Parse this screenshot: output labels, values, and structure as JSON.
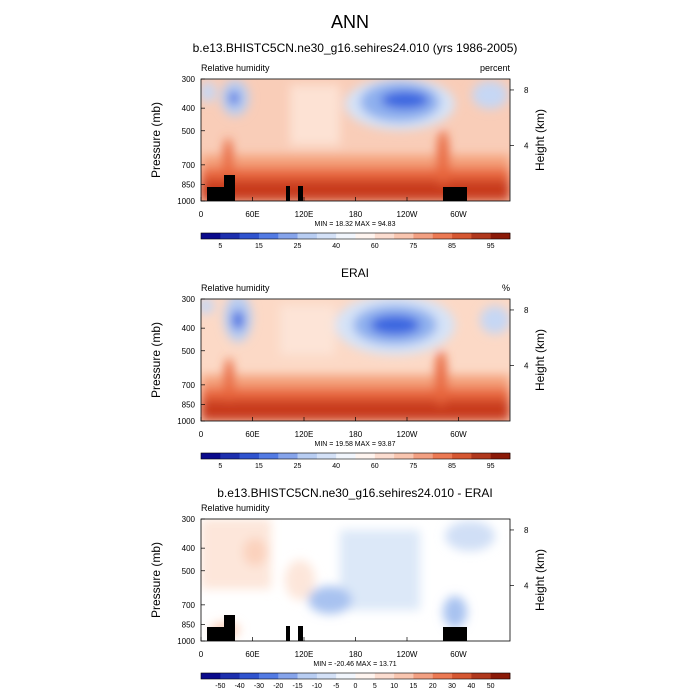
{
  "page_title": "ANN",
  "colors": {
    "blue_dark": "#0a0a8c",
    "blue": "#3a66e0",
    "blue_light": "#b8cdf2",
    "neutral": "#ffffff",
    "red_light": "#f9c6b0",
    "red": "#e8663c",
    "red_dark": "#8b1a08",
    "land": "#000000"
  },
  "chart_data": [
    {
      "type": "heatmap",
      "title": "b.e13.BHISTC5CN.ne30_g16.sehires24.010 (yrs 1986-2005)",
      "left_string": "Relative humidity",
      "right_string": "percent",
      "ylabel": "Pressure (mb)",
      "y2label": "Height (km)",
      "xticks": [
        "0",
        "60E",
        "120E",
        "180",
        "120W",
        "60W"
      ],
      "yticks": [
        "300",
        "400",
        "500",
        "700",
        "850",
        "1000"
      ],
      "y2ticks": [
        "8",
        "4"
      ],
      "ylim": [
        1000,
        300
      ],
      "xlim": [
        0,
        360
      ],
      "stats": "MIN = 18.32  MAX = 94.83",
      "min": 18.32,
      "max": 94.83,
      "colorbar_labels": [
        "5",
        "15",
        "25",
        "40",
        "60",
        "75",
        "85",
        "95"
      ],
      "colorbar_levels": [
        5,
        10,
        15,
        20,
        25,
        30,
        40,
        50,
        60,
        70,
        75,
        80,
        85,
        90,
        95
      ]
    },
    {
      "type": "heatmap",
      "title": "ERAI",
      "left_string": "Relative humidity",
      "right_string": "%",
      "ylabel": "Pressure (mb)",
      "y2label": "Height (km)",
      "xticks": [
        "0",
        "60E",
        "120E",
        "180",
        "120W",
        "60W"
      ],
      "yticks": [
        "300",
        "400",
        "500",
        "700",
        "850",
        "1000"
      ],
      "y2ticks": [
        "8",
        "4"
      ],
      "ylim": [
        1000,
        300
      ],
      "xlim": [
        0,
        360
      ],
      "stats": "MIN = 19.58  MAX = 93.87",
      "min": 19.58,
      "max": 93.87,
      "colorbar_labels": [
        "5",
        "15",
        "25",
        "40",
        "60",
        "75",
        "85",
        "95"
      ],
      "colorbar_levels": [
        5,
        10,
        15,
        20,
        25,
        30,
        40,
        50,
        60,
        70,
        75,
        80,
        85,
        90,
        95
      ]
    },
    {
      "type": "heatmap",
      "title": "b.e13.BHISTC5CN.ne30_g16.sehires24.010 - ERAI",
      "left_string": "Relative humidity",
      "right_string": "",
      "ylabel": "Pressure (mb)",
      "y2label": "Height (km)",
      "xticks": [
        "0",
        "60E",
        "120E",
        "180",
        "120W",
        "60W"
      ],
      "yticks": [
        "300",
        "400",
        "500",
        "700",
        "850",
        "1000"
      ],
      "y2ticks": [
        "8",
        "4"
      ],
      "ylim": [
        1000,
        300
      ],
      "xlim": [
        0,
        360
      ],
      "stats": "MIN = -20.46  MAX = 13.71",
      "min": -20.46,
      "max": 13.71,
      "colorbar_labels": [
        "-50",
        "-40",
        "-30",
        "-20",
        "-15",
        "-10",
        "-5",
        "0",
        "5",
        "10",
        "15",
        "20",
        "30",
        "40",
        "50"
      ],
      "colorbar_levels": [
        -50,
        -40,
        -30,
        -20,
        -15,
        -10,
        -5,
        0,
        5,
        10,
        15,
        20,
        30,
        40,
        50
      ]
    }
  ]
}
